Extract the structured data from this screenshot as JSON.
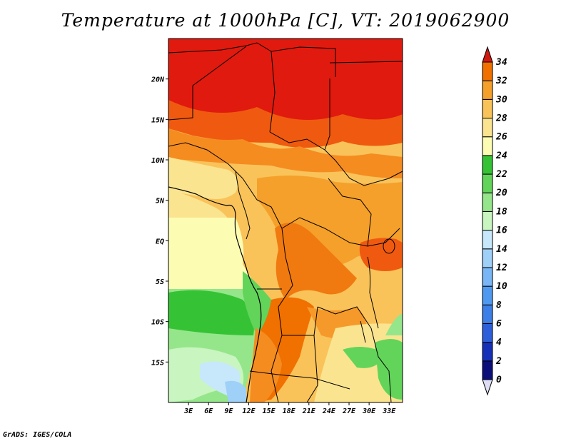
{
  "title": "Temperature at 1000hPa [C], VT: 2019062900",
  "footer": "GrADS: IGES/COLA",
  "map": {
    "lat_ticks": [
      {
        "lat": 20,
        "label": "20N"
      },
      {
        "lat": 15,
        "label": "15N"
      },
      {
        "lat": 10,
        "label": "10N"
      },
      {
        "lat": 5,
        "label": "5N"
      },
      {
        "lat": 0,
        "label": "EQ"
      },
      {
        "lat": -5,
        "label": "5S"
      },
      {
        "lat": -10,
        "label": "10S"
      },
      {
        "lat": -15,
        "label": "15S"
      }
    ],
    "lon_ticks": [
      {
        "lon": 3,
        "label": "3E"
      },
      {
        "lon": 6,
        "label": "6E"
      },
      {
        "lon": 9,
        "label": "9E"
      },
      {
        "lon": 12,
        "label": "12E"
      },
      {
        "lon": 15,
        "label": "15E"
      },
      {
        "lon": 18,
        "label": "18E"
      },
      {
        "lon": 21,
        "label": "21E"
      },
      {
        "lon": 24,
        "label": "24E"
      },
      {
        "lon": 27,
        "label": "27E"
      },
      {
        "lon": 30,
        "label": "30E"
      },
      {
        "lon": 33,
        "label": "33E"
      }
    ]
  },
  "colorbar": {
    "levels": [
      "0",
      "2",
      "4",
      "6",
      "8",
      "10",
      "12",
      "14",
      "16",
      "18",
      "20",
      "22",
      "24",
      "26",
      "28",
      "30",
      "32",
      "34"
    ],
    "colors": [
      "#0c0f7a",
      "#1730b8",
      "#2c5fd9",
      "#3c7fe6",
      "#4f9af0",
      "#78b6f5",
      "#9fd0f8",
      "#c7e8fb",
      "#c8f5c0",
      "#95e68a",
      "#62d45a",
      "#35c335",
      "#fdfcb3",
      "#fbe490",
      "#f9c35a",
      "#f5a02a",
      "#f07000",
      "#e23412",
      "#d01a10"
    ]
  }
}
